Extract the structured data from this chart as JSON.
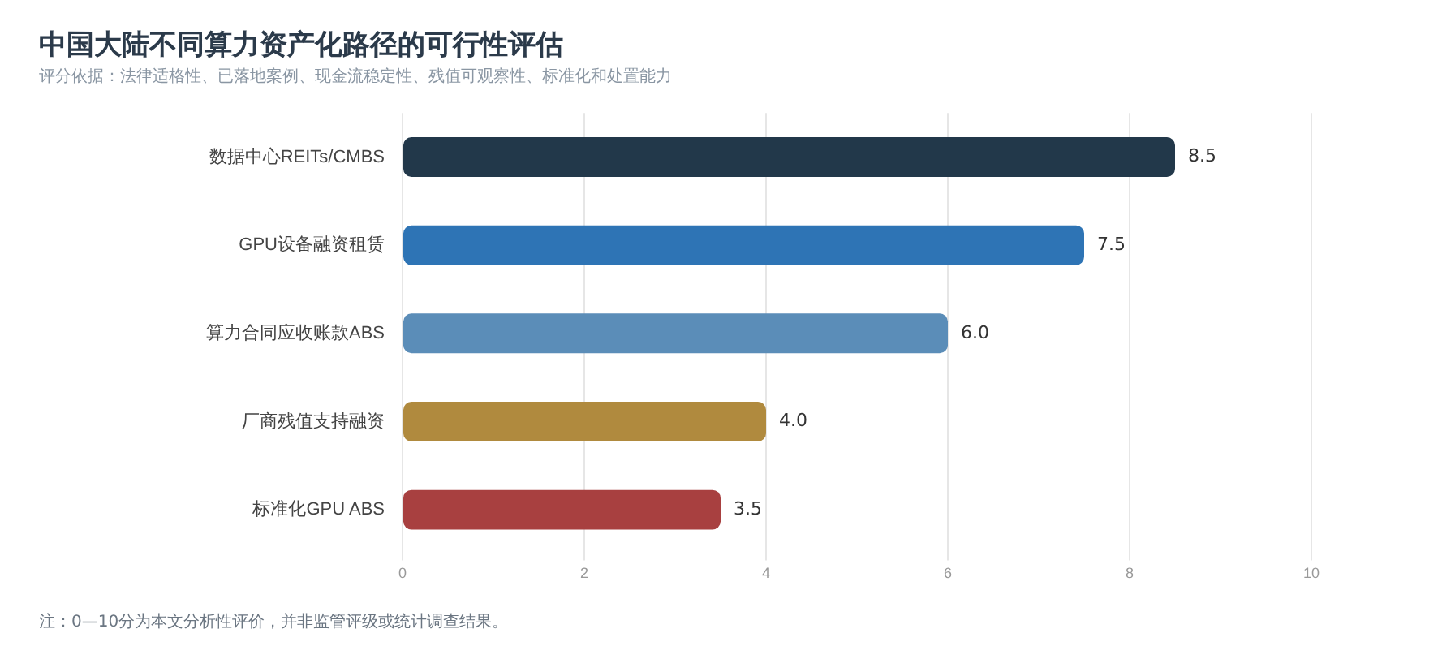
{
  "chart_data": {
    "type": "bar",
    "orientation": "horizontal",
    "title": "中国大陆不同算力资产化路径的可行性评估",
    "subtitle": "评分依据：法律适格性、已落地案例、现金流稳定性、残值可观察性、标准化和处置能力",
    "categories": [
      "数据中心REITs/CMBS",
      "GPU设备融资租赁",
      "算力合同应收账款ABS",
      "厂商残值支持融资",
      "标准化GPU ABS"
    ],
    "values": [
      8.5,
      7.5,
      6.0,
      4.0,
      3.5
    ],
    "colors": [
      "#22384a",
      "#2e74b5",
      "#5b8db8",
      "#b08a3e",
      "#a84040"
    ],
    "value_labels": [
      "8.5",
      "7.5",
      "6.0",
      "4.0",
      "3.5"
    ],
    "xlim": [
      0,
      10
    ],
    "xticks": [
      0,
      2,
      4,
      6,
      8,
      10
    ],
    "grid": "x",
    "legend": false,
    "annotations": [
      "注：0—10分为本文分析性评价，并非监管评级或统计调查结果。"
    ]
  }
}
